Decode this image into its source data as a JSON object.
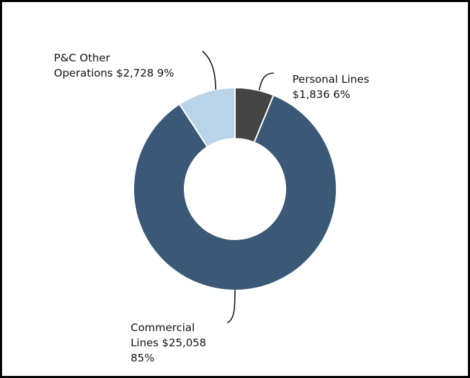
{
  "chart_data": {
    "type": "pie",
    "donut": true,
    "title": "",
    "start_angle_deg": 90,
    "direction": "clockwise",
    "slices": [
      {
        "name": "Personal Lines",
        "value": 1836,
        "percent": 6,
        "label": "Personal Lines\n$1,836 6%",
        "color": "#444444"
      },
      {
        "name": "Commercial Lines",
        "value": 25058,
        "percent": 85,
        "label": "Commercial\nLines $25,058\n85%",
        "color": "#3b5876"
      },
      {
        "name": "P&C Other Operations",
        "value": 2728,
        "percent": 9,
        "label": "P&C Other\nOperations $2,728 9%",
        "color": "#b9d3e8"
      }
    ]
  }
}
